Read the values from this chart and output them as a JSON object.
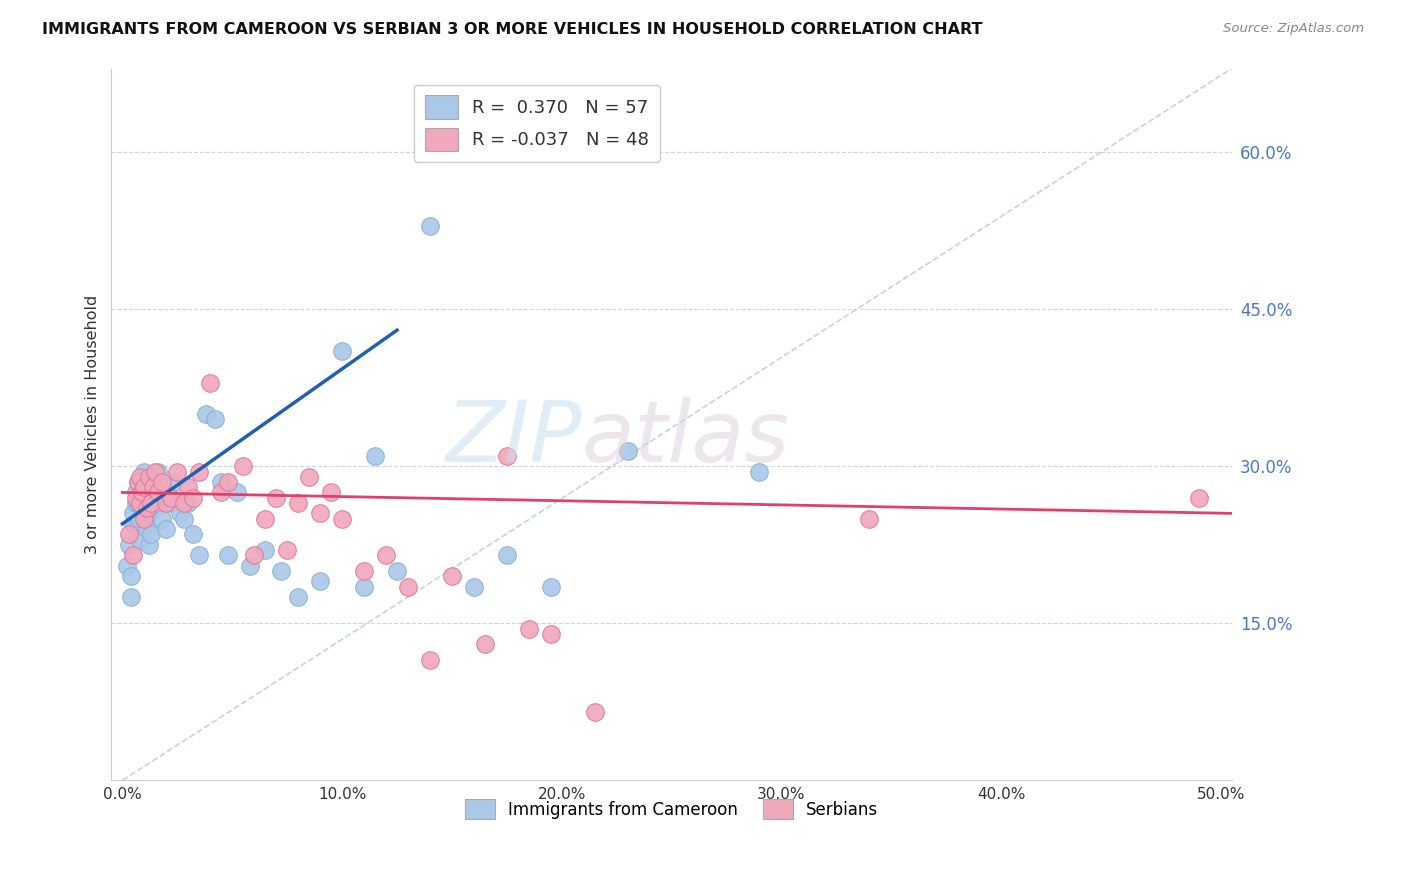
{
  "title": "IMMIGRANTS FROM CAMEROON VS SERBIAN 3 OR MORE VEHICLES IN HOUSEHOLD CORRELATION CHART",
  "source": "Source: ZipAtlas.com",
  "ylabel_left": "3 or more Vehicles in Household",
  "ylabel_right_labels": [
    "60.0%",
    "45.0%",
    "30.0%",
    "15.0%"
  ],
  "ylabel_right_values": [
    0.6,
    0.45,
    0.3,
    0.15
  ],
  "xaxis_labels": [
    "0.0%",
    "10.0%",
    "20.0%",
    "30.0%",
    "40.0%",
    "50.0%"
  ],
  "xaxis_values": [
    0.0,
    0.1,
    0.2,
    0.3,
    0.4,
    0.5
  ],
  "xlim": [
    -0.005,
    0.505
  ],
  "ylim": [
    0.0,
    0.68
  ],
  "legend_entries": [
    {
      "label": "R =  0.370   N = 57",
      "color": "#aac8e8"
    },
    {
      "label": "R = -0.037   N = 48",
      "color": "#f0a8bc"
    }
  ],
  "watermark_zip": "ZIP",
  "watermark_atlas": "atlas",
  "blue_color": "#aac8e8",
  "pink_color": "#f0a8bc",
  "blue_edge": "#88b0d8",
  "pink_edge": "#e07898",
  "trend_blue": "#2060b0",
  "trend_pink": "#e0406a",
  "ref_line_color": "#b8c8d8",
  "grid_color": "#c8d8e8",
  "right_axis_color": "#4878c8",
  "title_color": "#111111",
  "blue_points_x": [
    0.002,
    0.003,
    0.004,
    0.004,
    0.005,
    0.005,
    0.006,
    0.006,
    0.007,
    0.007,
    0.007,
    0.008,
    0.008,
    0.009,
    0.009,
    0.01,
    0.01,
    0.01,
    0.011,
    0.011,
    0.012,
    0.012,
    0.013,
    0.013,
    0.014,
    0.015,
    0.016,
    0.017,
    0.018,
    0.02,
    0.022,
    0.024,
    0.026,
    0.028,
    0.03,
    0.032,
    0.035,
    0.038,
    0.042,
    0.045,
    0.048,
    0.052,
    0.058,
    0.065,
    0.072,
    0.08,
    0.09,
    0.1,
    0.11,
    0.115,
    0.125,
    0.14,
    0.16,
    0.175,
    0.195,
    0.23,
    0.29
  ],
  "blue_points_y": [
    0.205,
    0.225,
    0.175,
    0.195,
    0.245,
    0.255,
    0.265,
    0.275,
    0.245,
    0.265,
    0.285,
    0.25,
    0.23,
    0.26,
    0.28,
    0.265,
    0.285,
    0.295,
    0.24,
    0.26,
    0.225,
    0.255,
    0.235,
    0.29,
    0.26,
    0.27,
    0.295,
    0.27,
    0.25,
    0.24,
    0.265,
    0.285,
    0.255,
    0.25,
    0.265,
    0.235,
    0.215,
    0.35,
    0.345,
    0.285,
    0.215,
    0.275,
    0.205,
    0.22,
    0.2,
    0.175,
    0.19,
    0.41,
    0.185,
    0.31,
    0.2,
    0.53,
    0.185,
    0.215,
    0.185,
    0.315,
    0.295
  ],
  "pink_points_x": [
    0.003,
    0.005,
    0.006,
    0.007,
    0.008,
    0.008,
    0.009,
    0.01,
    0.01,
    0.011,
    0.012,
    0.013,
    0.014,
    0.015,
    0.016,
    0.018,
    0.02,
    0.022,
    0.025,
    0.028,
    0.03,
    0.032,
    0.035,
    0.04,
    0.045,
    0.048,
    0.055,
    0.06,
    0.065,
    0.07,
    0.075,
    0.08,
    0.085,
    0.09,
    0.095,
    0.1,
    0.11,
    0.12,
    0.13,
    0.14,
    0.15,
    0.165,
    0.175,
    0.185,
    0.195,
    0.215,
    0.34,
    0.49
  ],
  "pink_points_y": [
    0.235,
    0.215,
    0.27,
    0.285,
    0.265,
    0.29,
    0.275,
    0.25,
    0.28,
    0.26,
    0.29,
    0.265,
    0.28,
    0.295,
    0.275,
    0.285,
    0.265,
    0.27,
    0.295,
    0.265,
    0.28,
    0.27,
    0.295,
    0.38,
    0.275,
    0.285,
    0.3,
    0.215,
    0.25,
    0.27,
    0.22,
    0.265,
    0.29,
    0.255,
    0.275,
    0.25,
    0.2,
    0.215,
    0.185,
    0.115,
    0.195,
    0.13,
    0.31,
    0.145,
    0.14,
    0.065,
    0.25,
    0.27
  ],
  "blue_trend_x0": 0.0,
  "blue_trend_x1": 0.125,
  "blue_trend_y0": 0.245,
  "blue_trend_y1": 0.43,
  "pink_trend_x0": 0.0,
  "pink_trend_x1": 0.505,
  "pink_trend_y0": 0.275,
  "pink_trend_y1": 0.255,
  "ref_line_x0": 0.0,
  "ref_line_x1": 0.505,
  "ref_line_y0": 0.0,
  "ref_line_y1": 0.68
}
